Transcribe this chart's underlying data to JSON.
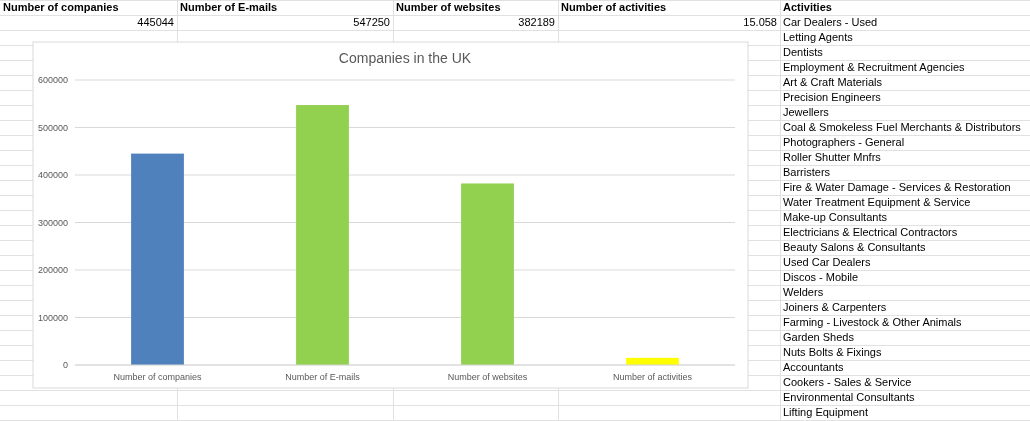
{
  "chart_data": {
    "type": "bar",
    "title": "Companies in the UK",
    "categories": [
      "Number of companies",
      "Number of E-mails",
      "Number of websites",
      "Number of activities"
    ],
    "values": [
      445044,
      547250,
      382189,
      15058
    ],
    "colors": [
      "#4f81bd",
      "#92d050",
      "#92d050",
      "#ffff00"
    ],
    "ylim": [
      0,
      600000
    ],
    "yticks": [
      0,
      100000,
      200000,
      300000,
      400000,
      500000,
      600000
    ],
    "grid": "y",
    "annotations": [
      "445044",
      "547250",
      "382189",
      "15.058",
      "Activities",
      "Car Dealers - Used",
      "Letting Agents",
      "Dentists",
      "Employment & Recruitment Agencies",
      "Art & Craft Materials",
      "Precision Engineers",
      "Jewellers",
      "Coal & Smokeless Fuel Merchants & Distributors",
      "Photographers - General",
      "Roller Shutter Mnfrs",
      "Barristers",
      "Fire & Water Damage - Services & Restoration",
      "Water Treatment Equipment & Service",
      "Make-up Consultants",
      "Electricians & Electrical Contractors",
      "Beauty Salons & Consultants",
      "Used Car Dealers",
      "Discos - Mobile",
      "Welders",
      "Joiners & Carpenters",
      "Farming - Livestock & Other Animals",
      "Garden Sheds",
      "Nuts Bolts & Fixings",
      "Accountants",
      "Cookers - Sales & Service",
      "Environmental Consultants",
      "Lifting Equipment"
    ]
  }
}
